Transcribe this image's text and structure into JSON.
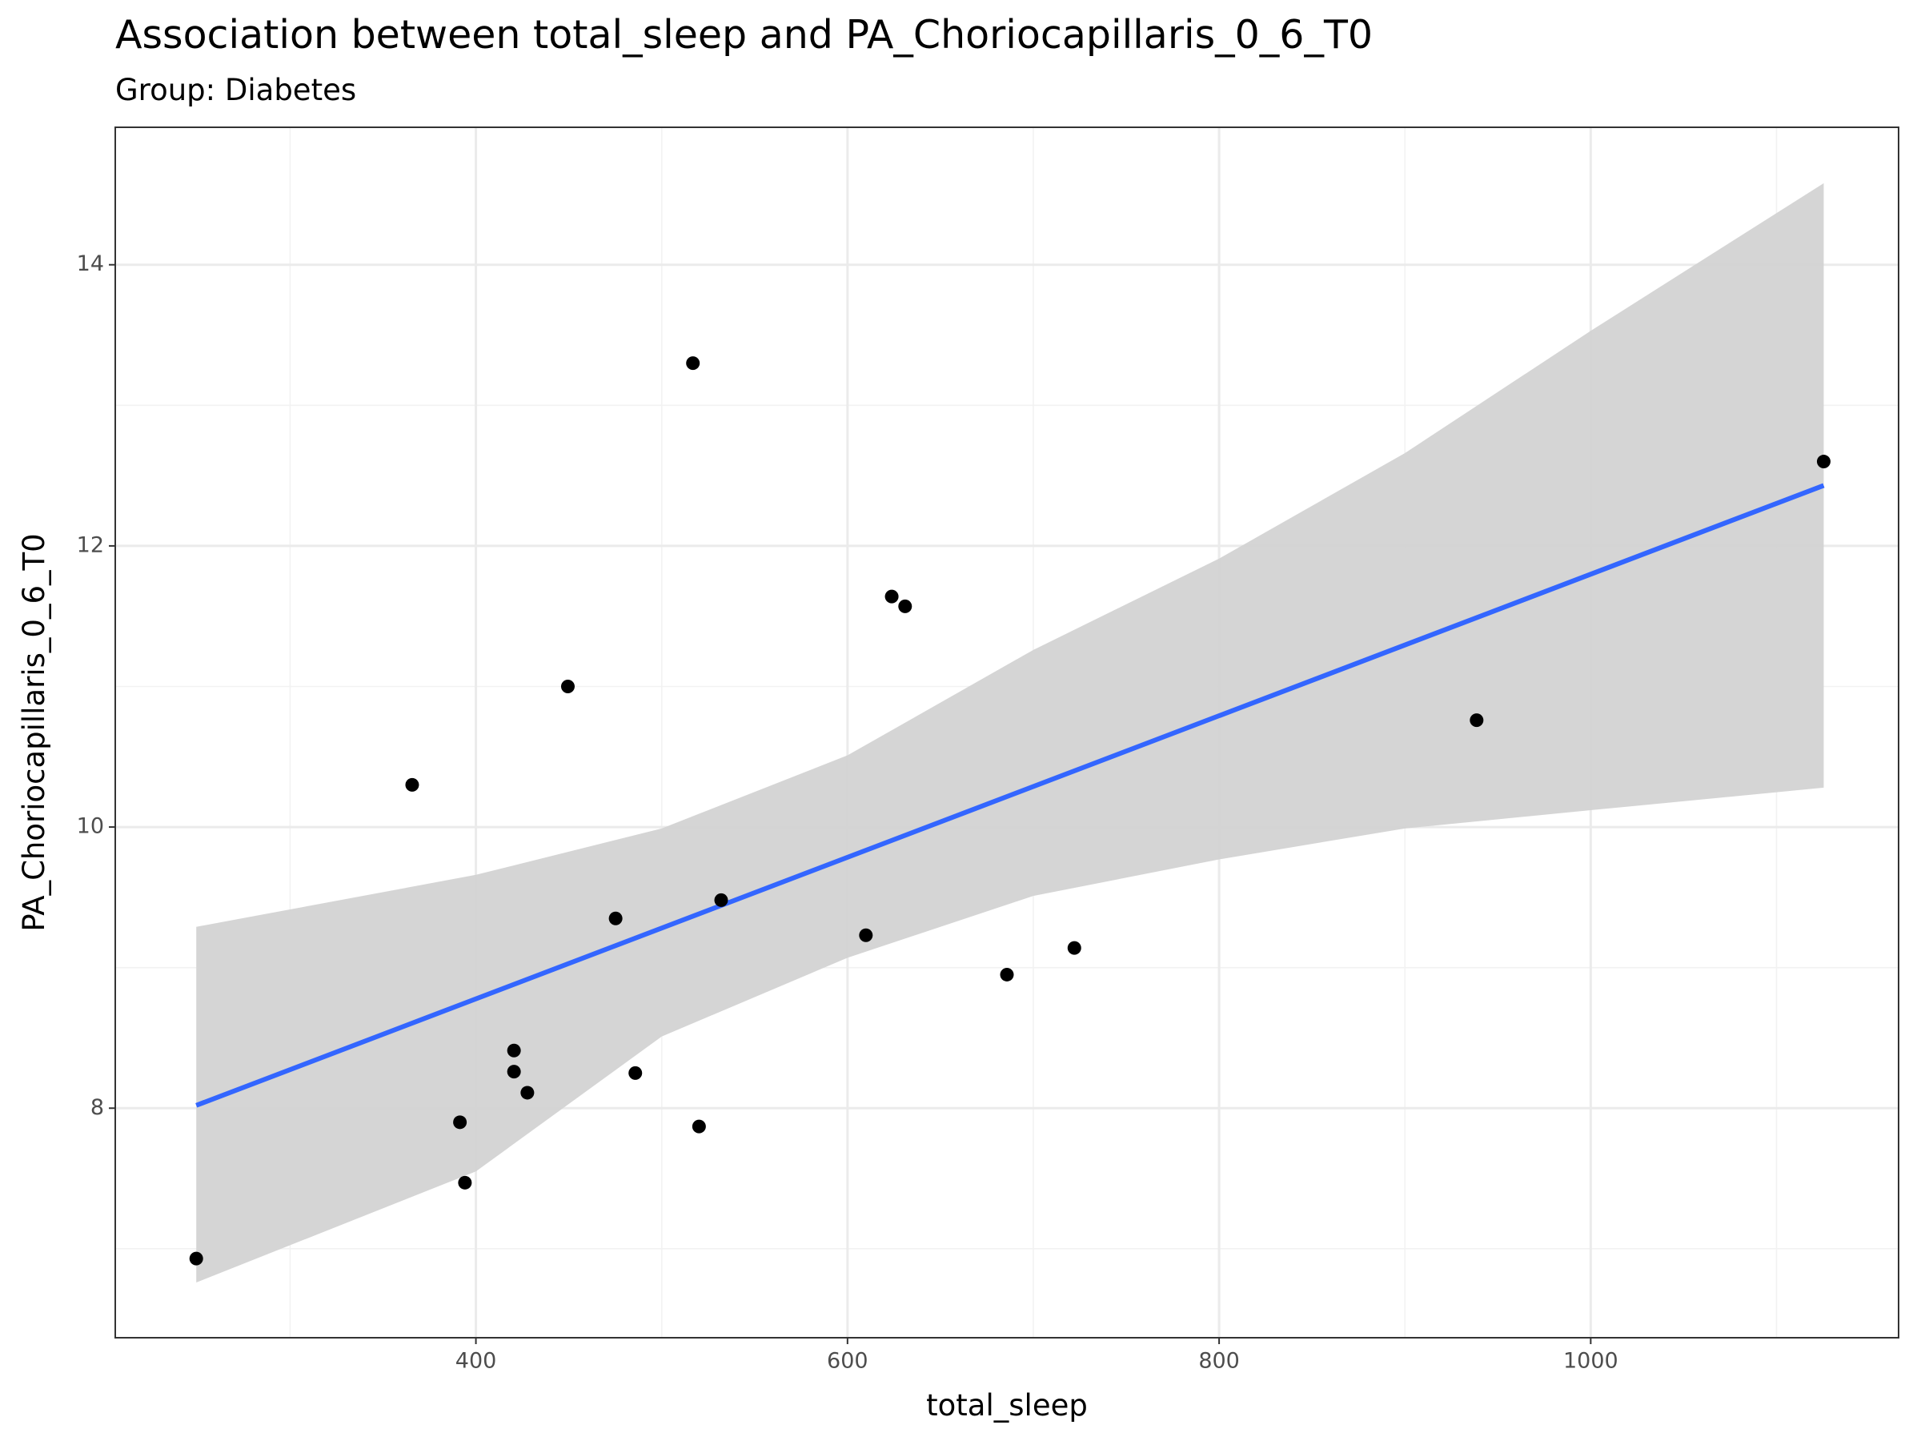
{
  "chart_data": {
    "type": "scatter",
    "title": "Association between total_sleep and PA_Choriocapillaris_0_6_T0",
    "subtitle": "Group: Diabetes",
    "x_label": "total_sleep",
    "y_label": "PA_Choriocapillaris_0_6_T0",
    "x": [
      249.5,
      365.7,
      391.4,
      394.1,
      420.5,
      420.5,
      427.7,
      449.5,
      475.2,
      485.8,
      516.8,
      520.1,
      532.0,
      609.9,
      623.8,
      631.0,
      685.8,
      722.1,
      938.6,
      1125.4
    ],
    "values": [
      6.93,
      10.3,
      7.9,
      7.47,
      8.41,
      8.26,
      8.11,
      11.0,
      9.35,
      8.25,
      13.3,
      7.87,
      9.48,
      9.23,
      11.64,
      11.57,
      8.95,
      9.14,
      10.76,
      12.6
    ],
    "color": "#000000",
    "fit": {
      "x": [
        249.5,
        1125.4
      ],
      "y": [
        8.02,
        12.43
      ],
      "color": "#3366FF"
    },
    "band": {
      "x": [
        249.5,
        400,
        500,
        600,
        700,
        800,
        900,
        1000,
        1125.4
      ],
      "upper": [
        9.29,
        9.66,
        9.99,
        10.51,
        11.26,
        11.91,
        12.66,
        13.53,
        14.58
      ],
      "lower": [
        6.76,
        7.55,
        8.51,
        9.07,
        9.51,
        9.77,
        9.99,
        10.12,
        10.28
      ],
      "color": "#d3d3d3"
    },
    "xlim": [
      205.9,
      1165.7
    ],
    "ylim": [
      6.367,
      14.978
    ],
    "xticks": [
      400,
      600,
      800,
      1000
    ],
    "yticks": [
      8,
      10,
      12,
      14
    ],
    "x_minor_grid": [
      300,
      500,
      700,
      900,
      1100
    ],
    "y_minor_grid": [
      7,
      9,
      11,
      13
    ],
    "grid": true
  }
}
